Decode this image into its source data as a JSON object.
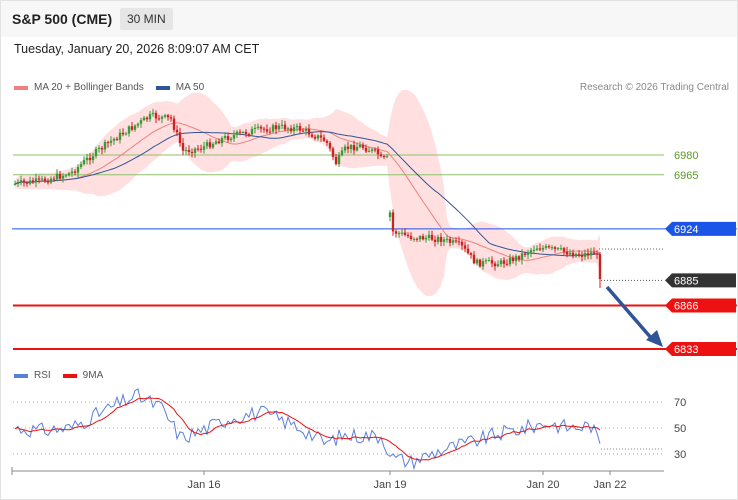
{
  "header": {
    "symbol": "S&P 500 (CME)",
    "interval": "30 MIN",
    "datetime": "Tuesday, January 20, 2026 8:09:07 AM CET"
  },
  "legend": {
    "ma20": "MA 20 + Bollinger Bands",
    "ma50": "MA 50",
    "credit": "Research © 2026 Trading Central",
    "rsi": "RSI",
    "rsi_ma": "9MA"
  },
  "colors": {
    "ma20": "#f08080",
    "ma50": "#2f5597",
    "band": "#ffd9d9",
    "bull": "#3a9a3a",
    "bear": "#cc2222",
    "resistance": "#1a55e8",
    "support": "#ee1111",
    "level_green": "#8cc26a",
    "rsi": "#5b7fd6",
    "rsi_ma": "#ee1111",
    "arrow": "#2f5597"
  },
  "chart_data": {
    "type": "candlestick",
    "x_ticks": [
      "Jan 16",
      "Jan 19",
      "Jan 20",
      "Jan 22"
    ],
    "price_range": [
      6820,
      7030
    ],
    "levels": [
      {
        "value": 6980,
        "label": "6980",
        "kind": "pivot"
      },
      {
        "value": 6965,
        "label": "6965",
        "kind": "pivot"
      },
      {
        "value": 6924,
        "label": "6924",
        "kind": "resistance"
      },
      {
        "value": 6885,
        "label": "6885",
        "kind": "last"
      },
      {
        "value": 6866,
        "label": "6866",
        "kind": "support"
      },
      {
        "value": 6833,
        "label": "6833",
        "kind": "support"
      }
    ],
    "target_arrow": {
      "from": 6883,
      "to": 6833
    },
    "rsi": {
      "ylim": [
        20,
        85
      ],
      "ticks": [
        "70",
        "50",
        "30"
      ],
      "levels": [
        70,
        50,
        30
      ]
    }
  }
}
